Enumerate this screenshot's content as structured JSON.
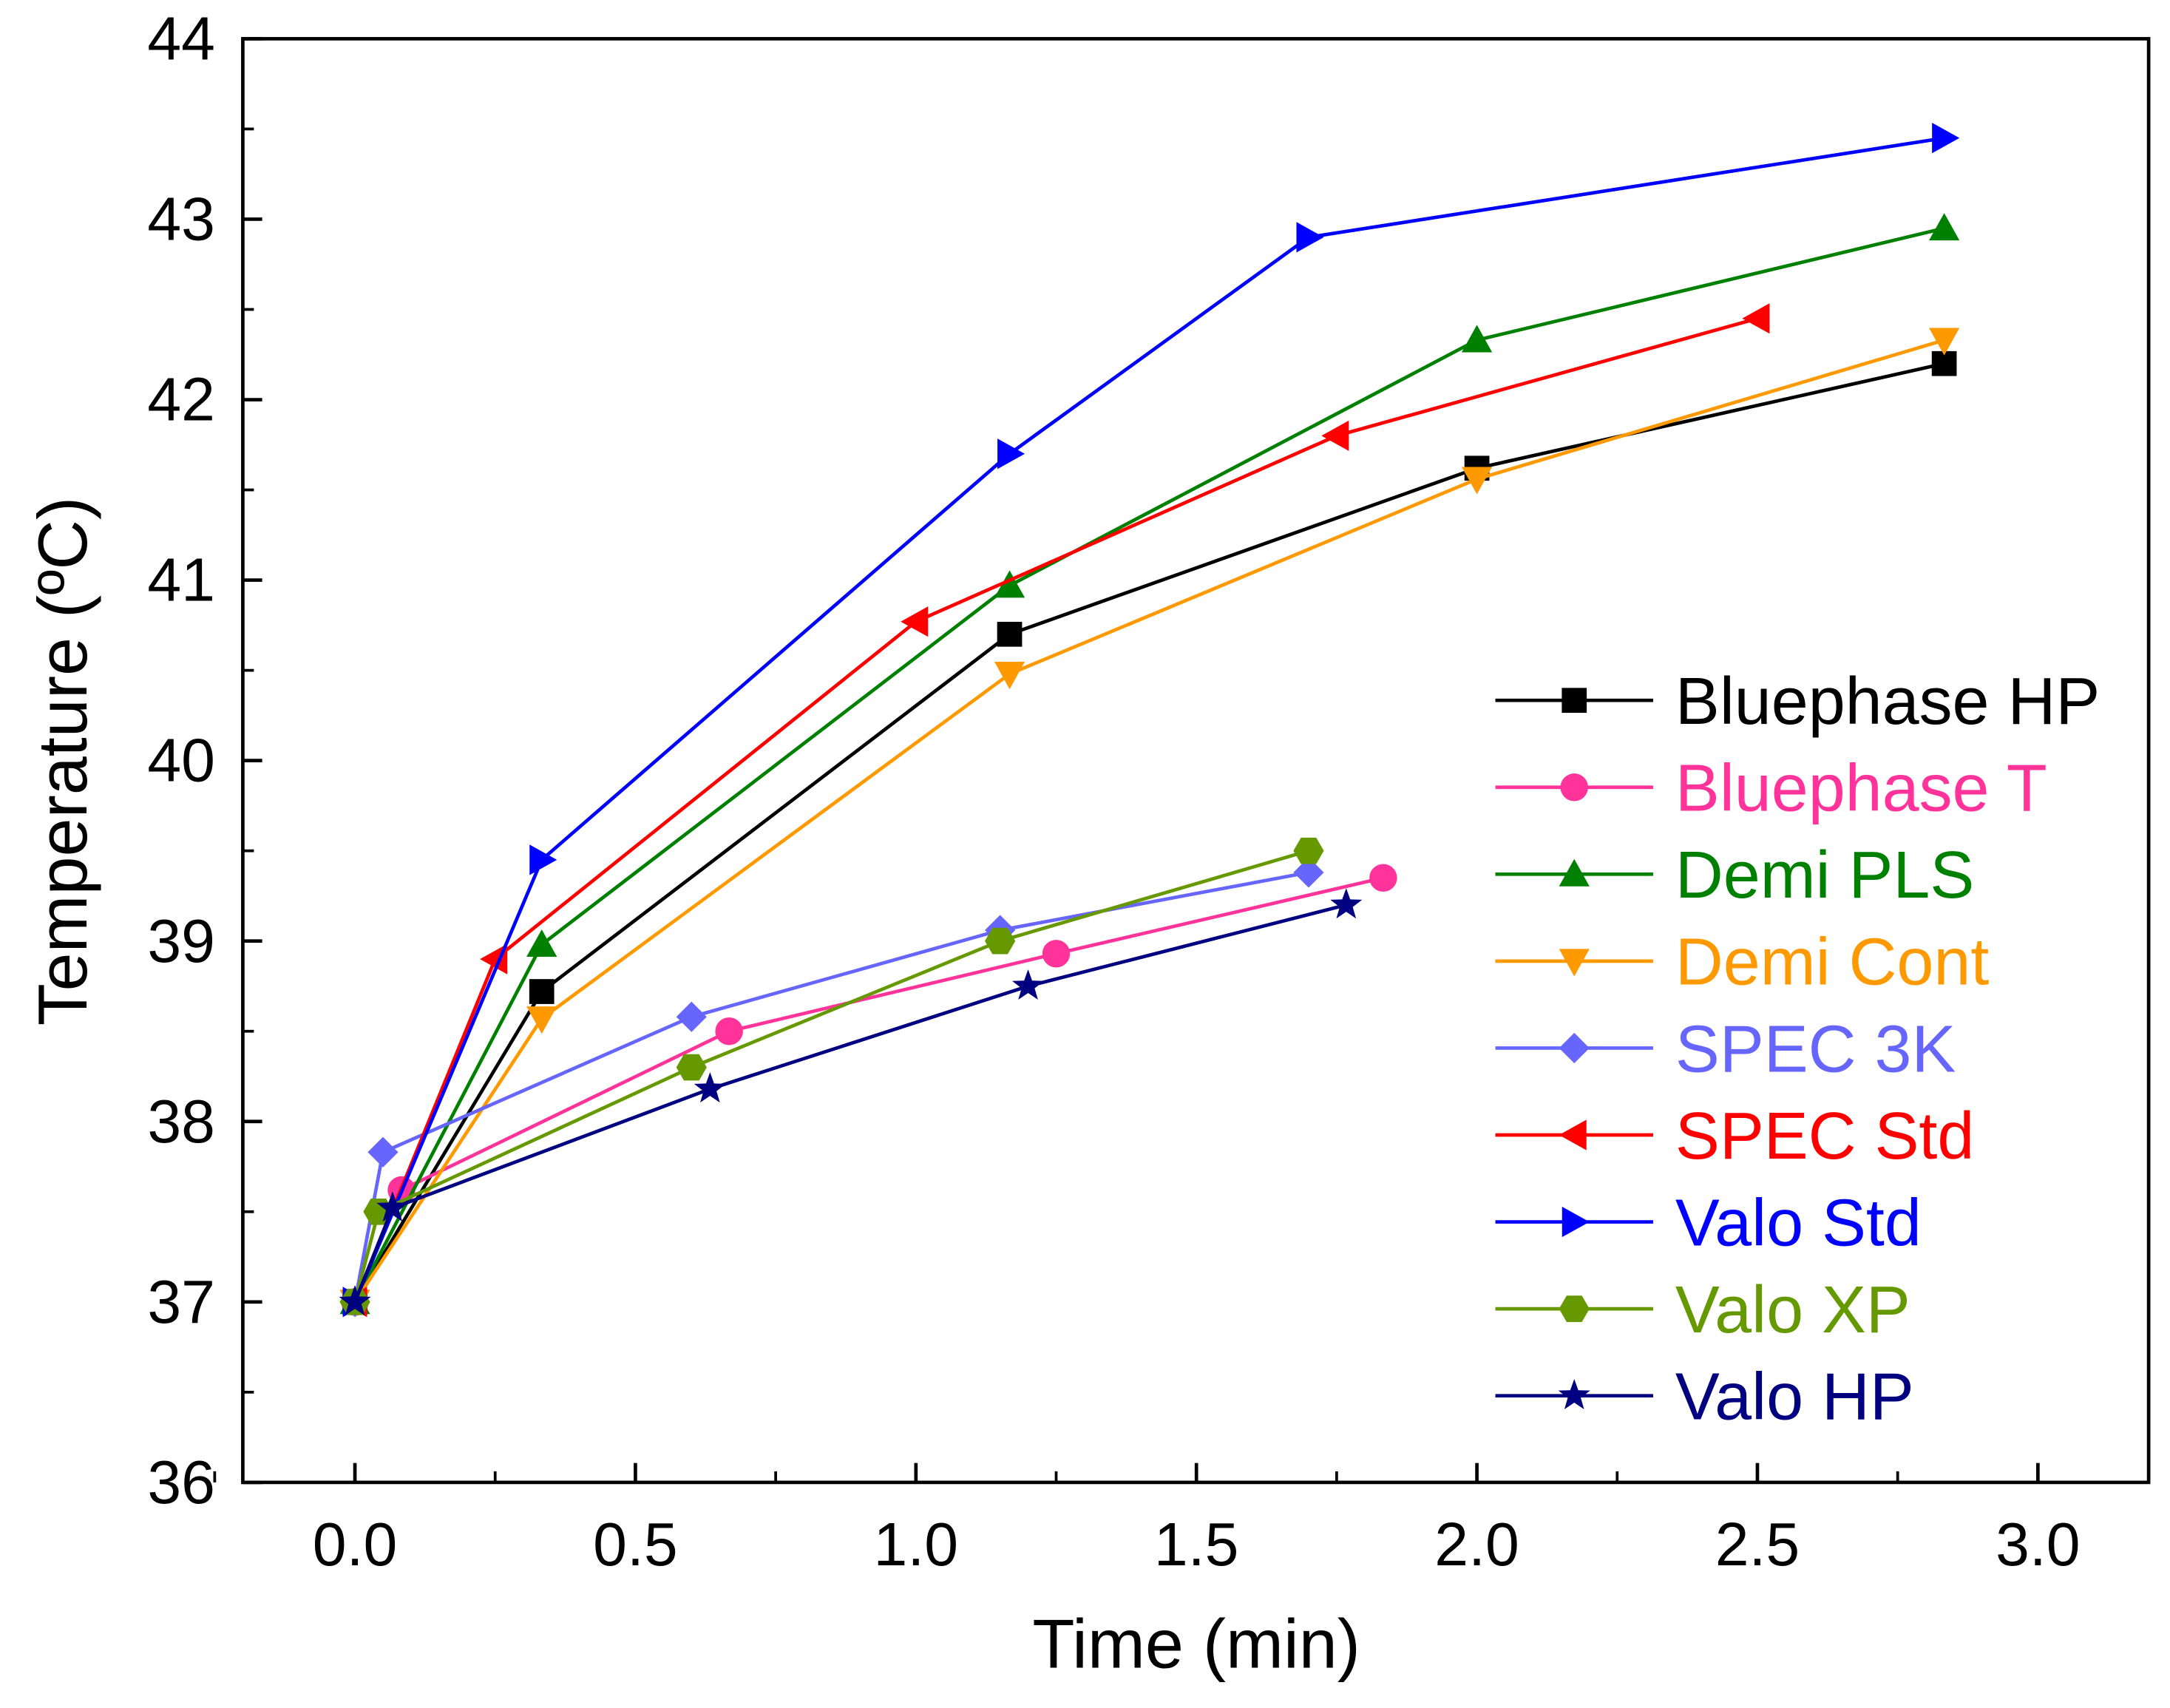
{
  "chart_data": {
    "type": "line",
    "title": "",
    "xlabel": "Time (min)",
    "ylabel": "Temperature (ºC)",
    "xlim": [
      -0.2,
      3.2
    ],
    "ylim": [
      36,
      44
    ],
    "xticks": [
      "0.0",
      "0.5",
      "1.0",
      "1.5",
      "2.0",
      "2.5",
      "3.0"
    ],
    "yticks": [
      "36",
      "37",
      "38",
      "39",
      "40",
      "41",
      "42",
      "43",
      "44"
    ],
    "legend_position": "right",
    "grid": false,
    "series": [
      {
        "name": "Bluephase HP",
        "color": "#000000",
        "marker": "square",
        "points": [
          [
            0,
            37
          ],
          [
            0.333,
            38.72
          ],
          [
            1.167,
            40.7
          ],
          [
            2.0,
            41.62
          ],
          [
            2.833,
            42.2
          ]
        ]
      },
      {
        "name": "Bluephase T",
        "color": "#ff3399",
        "marker": "circle",
        "points": [
          [
            0,
            37
          ],
          [
            0.083,
            37.62
          ],
          [
            0.667,
            38.5
          ],
          [
            1.25,
            38.93
          ],
          [
            1.833,
            39.35
          ]
        ]
      },
      {
        "name": "Demi PLS",
        "color": "#008000",
        "marker": "triangle-up",
        "points": [
          [
            0,
            37
          ],
          [
            0.333,
            38.98
          ],
          [
            1.167,
            40.97
          ],
          [
            2.0,
            42.33
          ],
          [
            2.833,
            42.95
          ]
        ]
      },
      {
        "name": "Demi Cont",
        "color": "#ff9900",
        "marker": "triangle-down",
        "points": [
          [
            0,
            37
          ],
          [
            0.333,
            38.57
          ],
          [
            1.167,
            40.48
          ],
          [
            2.0,
            41.56
          ],
          [
            2.833,
            42.33
          ]
        ]
      },
      {
        "name": "SPEC 3K",
        "color": "#6666ff",
        "marker": "diamond",
        "points": [
          [
            0,
            37
          ],
          [
            0.05,
            37.83
          ],
          [
            0.6,
            38.58
          ],
          [
            1.15,
            39.06
          ],
          [
            1.7,
            39.38
          ]
        ]
      },
      {
        "name": "SPEC Std",
        "color": "#ff0000",
        "marker": "triangle-left",
        "points": [
          [
            0,
            37
          ],
          [
            0.25,
            38.9
          ],
          [
            1.0,
            40.77
          ],
          [
            1.75,
            41.8
          ],
          [
            2.5,
            42.45
          ]
        ]
      },
      {
        "name": "Valo Std",
        "color": "#0000ff",
        "marker": "triangle-right",
        "points": [
          [
            0,
            37
          ],
          [
            0.333,
            39.45
          ],
          [
            1.167,
            41.7
          ],
          [
            1.7,
            42.9
          ],
          [
            2.833,
            43.45
          ]
        ]
      },
      {
        "name": "Valo XP",
        "color": "#669900",
        "marker": "hexagon",
        "points": [
          [
            0,
            37
          ],
          [
            0.042,
            37.5
          ],
          [
            0.6,
            38.3
          ],
          [
            1.15,
            39.0
          ],
          [
            1.7,
            39.5
          ]
        ]
      },
      {
        "name": "Valo HP",
        "color": "#000080",
        "marker": "star",
        "points": [
          [
            0,
            37
          ],
          [
            0.067,
            37.52
          ],
          [
            0.633,
            38.18
          ],
          [
            1.2,
            38.75
          ],
          [
            1.767,
            39.2
          ]
        ]
      }
    ]
  }
}
